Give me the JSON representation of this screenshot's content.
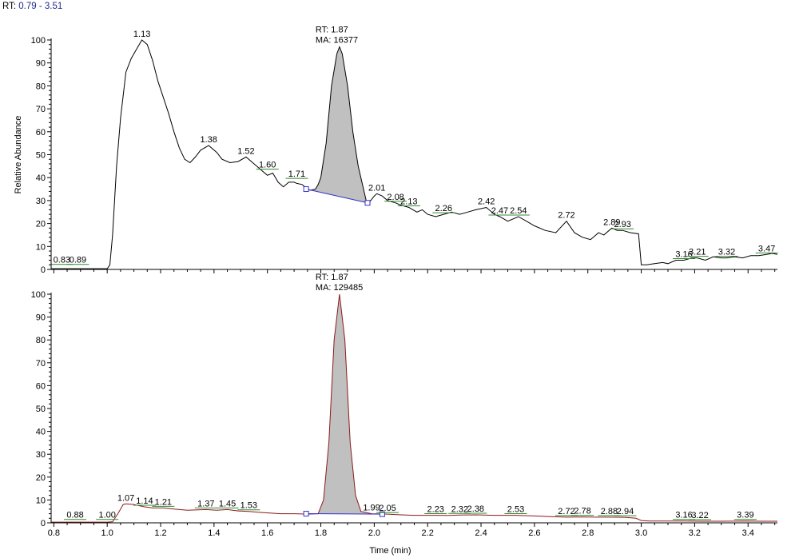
{
  "header": {
    "rt_label": "RT:",
    "rt_range": "0.79 - 3.51"
  },
  "colors": {
    "trace_top": "#000000",
    "trace_bottom": "#8b1a1a",
    "peak_fill": "#c0c0c0",
    "baseline": "#3333cc",
    "label_green": "#2f8a2f",
    "axis": "#000000"
  },
  "chart_data": [
    {
      "type": "line",
      "ylabel": "Relative Abundance",
      "xlabel": "",
      "xlim": [
        0.79,
        3.51
      ],
      "ylim": [
        0,
        100
      ],
      "yticks": [
        0,
        10,
        20,
        30,
        40,
        50,
        60,
        70,
        80,
        90,
        100
      ],
      "x_tick_labels": [],
      "trace": [
        [
          0.79,
          0.3
        ],
        [
          0.9,
          0.3
        ],
        [
          1.0,
          0.3
        ],
        [
          1.01,
          2
        ],
        [
          1.02,
          15
        ],
        [
          1.035,
          45
        ],
        [
          1.05,
          66
        ],
        [
          1.07,
          86
        ],
        [
          1.09,
          92
        ],
        [
          1.11,
          96
        ],
        [
          1.13,
          100
        ],
        [
          1.15,
          98
        ],
        [
          1.17,
          91
        ],
        [
          1.19,
          82
        ],
        [
          1.21,
          75
        ],
        [
          1.23,
          68
        ],
        [
          1.25,
          60
        ],
        [
          1.27,
          53
        ],
        [
          1.29,
          48
        ],
        [
          1.31,
          46.5
        ],
        [
          1.33,
          49
        ],
        [
          1.35,
          52
        ],
        [
          1.38,
          54
        ],
        [
          1.41,
          51
        ],
        [
          1.43,
          48
        ],
        [
          1.46,
          46.5
        ],
        [
          1.49,
          47
        ],
        [
          1.52,
          49
        ],
        [
          1.55,
          46
        ],
        [
          1.58,
          43
        ],
        [
          1.6,
          41
        ],
        [
          1.62,
          42
        ],
        [
          1.64,
          38
        ],
        [
          1.66,
          36
        ],
        [
          1.68,
          38
        ],
        [
          1.7,
          38
        ],
        [
          1.71,
          37.5
        ],
        [
          1.73,
          37
        ],
        [
          1.75,
          35
        ],
        [
          1.76,
          34.5
        ],
        [
          1.78,
          35
        ],
        [
          1.79,
          37
        ],
        [
          1.8,
          40
        ],
        [
          1.82,
          55
        ],
        [
          1.84,
          80
        ],
        [
          1.86,
          94
        ],
        [
          1.87,
          97
        ],
        [
          1.88,
          94
        ],
        [
          1.9,
          80
        ],
        [
          1.92,
          60
        ],
        [
          1.94,
          45
        ],
        [
          1.96,
          35
        ],
        [
          1.97,
          30
        ],
        [
          1.98,
          29
        ],
        [
          2.0,
          32
        ],
        [
          2.01,
          33
        ],
        [
          2.03,
          32
        ],
        [
          2.05,
          30
        ],
        [
          2.08,
          29
        ],
        [
          2.1,
          28
        ],
        [
          2.13,
          27
        ],
        [
          2.16,
          25
        ],
        [
          2.18,
          26
        ],
        [
          2.2,
          24
        ],
        [
          2.23,
          23
        ],
        [
          2.26,
          24
        ],
        [
          2.29,
          25
        ],
        [
          2.32,
          24
        ],
        [
          2.35,
          25
        ],
        [
          2.38,
          26
        ],
        [
          2.42,
          27
        ],
        [
          2.45,
          24
        ],
        [
          2.47,
          23
        ],
        [
          2.5,
          21
        ],
        [
          2.54,
          23
        ],
        [
          2.57,
          21
        ],
        [
          2.6,
          19
        ],
        [
          2.64,
          17
        ],
        [
          2.68,
          16
        ],
        [
          2.72,
          21
        ],
        [
          2.75,
          16
        ],
        [
          2.78,
          14
        ],
        [
          2.81,
          13
        ],
        [
          2.84,
          16
        ],
        [
          2.86,
          15
        ],
        [
          2.89,
          18
        ],
        [
          2.91,
          17
        ],
        [
          2.93,
          17
        ],
        [
          2.96,
          16
        ],
        [
          2.99,
          15.5
        ],
        [
          3.0,
          2
        ],
        [
          3.02,
          2
        ],
        [
          3.05,
          2.5
        ],
        [
          3.08,
          3
        ],
        [
          3.1,
          2.5
        ],
        [
          3.13,
          4
        ],
        [
          3.16,
          4
        ],
        [
          3.19,
          5
        ],
        [
          3.21,
          5
        ],
        [
          3.24,
          4
        ],
        [
          3.27,
          5.5
        ],
        [
          3.3,
          5
        ],
        [
          3.32,
          5
        ],
        [
          3.35,
          5.5
        ],
        [
          3.38,
          5
        ],
        [
          3.41,
          6
        ],
        [
          3.44,
          6
        ],
        [
          3.47,
          6.5
        ],
        [
          3.49,
          7
        ],
        [
          3.51,
          6.5
        ]
      ],
      "peak": {
        "rt_label": "RT: 1.87",
        "ma_label": "MA: 16377",
        "x_start": 1.745,
        "y_start": 35,
        "x_end": 1.975,
        "y_end": 29
      },
      "peak_labels": [
        {
          "x": 0.83,
          "y": 1.5,
          "text": "0.83",
          "green": true
        },
        {
          "x": 0.89,
          "y": 1.5,
          "text": "0.89",
          "green": true
        },
        {
          "x": 1.13,
          "y": 100,
          "text": "1.13",
          "green": false
        },
        {
          "x": 1.38,
          "y": 54,
          "text": "1.38",
          "green": false
        },
        {
          "x": 1.52,
          "y": 49,
          "text": "1.52",
          "green": false
        },
        {
          "x": 1.6,
          "y": 43,
          "text": "1.60",
          "green": true
        },
        {
          "x": 1.71,
          "y": 39,
          "text": "1.71",
          "green": true
        },
        {
          "x": 2.01,
          "y": 33,
          "text": "2.01",
          "green": false
        },
        {
          "x": 2.08,
          "y": 29,
          "text": "2.08",
          "green": true
        },
        {
          "x": 2.13,
          "y": 27,
          "text": "2.13",
          "green": true
        },
        {
          "x": 2.26,
          "y": 24,
          "text": "2.26",
          "green": true
        },
        {
          "x": 2.42,
          "y": 27,
          "text": "2.42",
          "green": false
        },
        {
          "x": 2.47,
          "y": 23,
          "text": "2.47",
          "green": true
        },
        {
          "x": 2.54,
          "y": 23,
          "text": "2.54",
          "green": true
        },
        {
          "x": 2.72,
          "y": 21,
          "text": "2.72",
          "green": false
        },
        {
          "x": 2.89,
          "y": 18,
          "text": "2.89",
          "green": false
        },
        {
          "x": 2.93,
          "y": 17,
          "text": "2.93",
          "green": true
        },
        {
          "x": 3.16,
          "y": 4,
          "text": "3.16",
          "green": true
        },
        {
          "x": 3.21,
          "y": 5,
          "text": "3.21",
          "green": true
        },
        {
          "x": 3.32,
          "y": 5,
          "text": "3.32",
          "green": true
        },
        {
          "x": 3.47,
          "y": 6.5,
          "text": "3.47",
          "green": true
        }
      ]
    },
    {
      "type": "line",
      "ylabel": "",
      "xlabel": "Time (min)",
      "xlim": [
        0.79,
        3.51
      ],
      "ylim": [
        0,
        100
      ],
      "yticks": [
        0,
        10,
        20,
        30,
        40,
        50,
        60,
        70,
        80,
        90,
        100
      ],
      "x_tick_labels": [
        0.8,
        1.0,
        1.2,
        1.4,
        1.6,
        1.8,
        2.0,
        2.2,
        2.4,
        2.6,
        2.8,
        3.0,
        3.2,
        3.4
      ],
      "trace": [
        [
          0.79,
          0.3
        ],
        [
          0.88,
          0.3
        ],
        [
          1.0,
          0.3
        ],
        [
          1.02,
          0.5
        ],
        [
          1.04,
          4
        ],
        [
          1.06,
          8
        ],
        [
          1.07,
          8.3
        ],
        [
          1.1,
          8
        ],
        [
          1.14,
          7
        ],
        [
          1.17,
          6.5
        ],
        [
          1.21,
          6.5
        ],
        [
          1.25,
          6
        ],
        [
          1.3,
          5.5
        ],
        [
          1.37,
          5.8
        ],
        [
          1.41,
          5.5
        ],
        [
          1.45,
          5.8
        ],
        [
          1.49,
          5.2
        ],
        [
          1.53,
          5
        ],
        [
          1.58,
          4.5
        ],
        [
          1.65,
          4
        ],
        [
          1.7,
          4
        ],
        [
          1.75,
          3.8
        ],
        [
          1.79,
          4
        ],
        [
          1.81,
          10
        ],
        [
          1.83,
          35
        ],
        [
          1.85,
          80
        ],
        [
          1.87,
          100
        ],
        [
          1.89,
          80
        ],
        [
          1.91,
          35
        ],
        [
          1.93,
          12
        ],
        [
          1.95,
          5
        ],
        [
          1.99,
          4
        ],
        [
          2.05,
          3.8
        ],
        [
          2.1,
          3.5
        ],
        [
          2.15,
          3.3
        ],
        [
          2.23,
          3.3
        ],
        [
          2.28,
          3.2
        ],
        [
          2.32,
          3.4
        ],
        [
          2.38,
          3.5
        ],
        [
          2.45,
          3.3
        ],
        [
          2.53,
          3.3
        ],
        [
          2.6,
          3
        ],
        [
          2.66,
          2.7
        ],
        [
          2.72,
          2.5
        ],
        [
          2.78,
          2.6
        ],
        [
          2.83,
          2.5
        ],
        [
          2.88,
          2.5
        ],
        [
          2.94,
          2.4
        ],
        [
          2.98,
          2
        ],
        [
          3.0,
          1
        ],
        [
          3.03,
          0.8
        ],
        [
          3.1,
          0.8
        ],
        [
          3.16,
          0.8
        ],
        [
          3.22,
          0.7
        ],
        [
          3.3,
          0.7
        ],
        [
          3.39,
          0.8
        ],
        [
          3.45,
          0.7
        ],
        [
          3.51,
          0.7
        ]
      ],
      "peak": {
        "rt_label": "RT: 1.87",
        "ma_label": "MA: 129485",
        "x_start": 1.745,
        "y_start": 4,
        "x_end": 2.03,
        "y_end": 3.8
      },
      "peak_labels": [
        {
          "x": 0.88,
          "y": 0.8,
          "text": "0.88",
          "green": true
        },
        {
          "x": 1.0,
          "y": 0.8,
          "text": "1.00",
          "green": true
        },
        {
          "x": 1.07,
          "y": 8.3,
          "text": "1.07",
          "green": false
        },
        {
          "x": 1.14,
          "y": 7,
          "text": "1.14",
          "green": true
        },
        {
          "x": 1.21,
          "y": 6.5,
          "text": "1.21",
          "green": true
        },
        {
          "x": 1.37,
          "y": 5.8,
          "text": "1.37",
          "green": true
        },
        {
          "x": 1.45,
          "y": 5.8,
          "text": "1.45",
          "green": true
        },
        {
          "x": 1.53,
          "y": 5,
          "text": "1.53",
          "green": true
        },
        {
          "x": 1.99,
          "y": 4,
          "text": "1.99",
          "green": false
        },
        {
          "x": 2.05,
          "y": 3.8,
          "text": "2.05",
          "green": true
        },
        {
          "x": 2.23,
          "y": 3.3,
          "text": "2.23",
          "green": true
        },
        {
          "x": 2.32,
          "y": 3.4,
          "text": "2.32",
          "green": true
        },
        {
          "x": 2.38,
          "y": 3.5,
          "text": "2.38",
          "green": true
        },
        {
          "x": 2.53,
          "y": 3.3,
          "text": "2.53",
          "green": true
        },
        {
          "x": 2.72,
          "y": 2.5,
          "text": "2.72",
          "green": true
        },
        {
          "x": 2.78,
          "y": 2.6,
          "text": "2.78",
          "green": true
        },
        {
          "x": 2.88,
          "y": 2.5,
          "text": "2.88",
          "green": true
        },
        {
          "x": 2.94,
          "y": 2.4,
          "text": "2.94",
          "green": true
        },
        {
          "x": 3.16,
          "y": 0.8,
          "text": "3.16",
          "green": true
        },
        {
          "x": 3.22,
          "y": 0.7,
          "text": "3.22",
          "green": true
        },
        {
          "x": 3.39,
          "y": 0.8,
          "text": "3.39",
          "green": true
        }
      ]
    }
  ]
}
